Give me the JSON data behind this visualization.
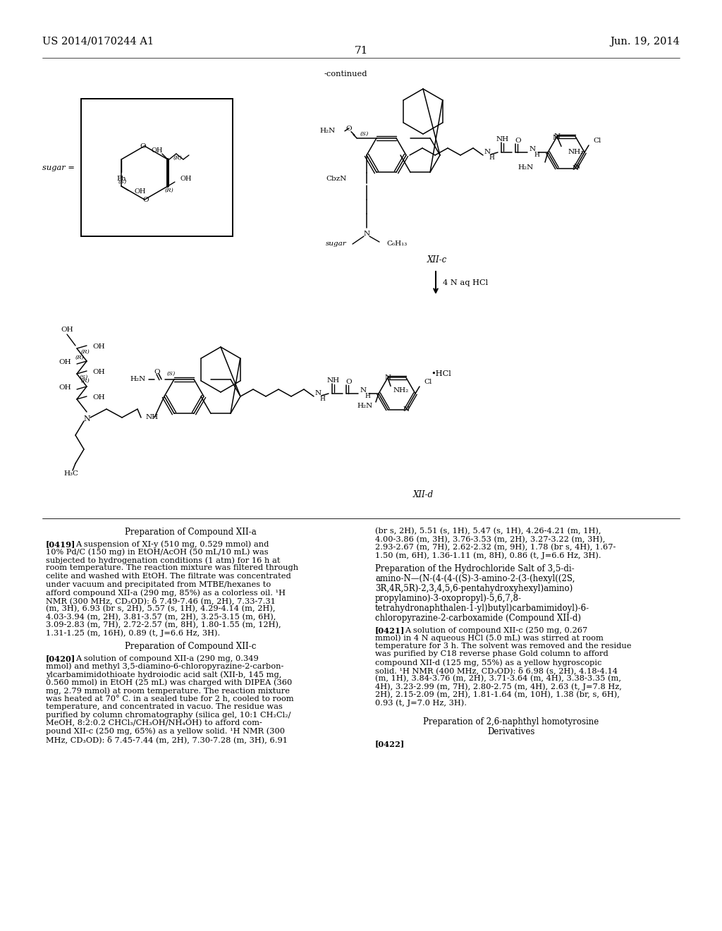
{
  "background_color": "#ffffff",
  "text_color": "#000000",
  "header_left": "US 2014/0170244 A1",
  "header_right": "Jun. 19, 2014",
  "page_number": "71",
  "continued_label": "-continued",
  "compound_top": "XII-c",
  "compound_bottom": "XII-d",
  "reaction_reagent": "4 N aq HCl",
  "sugar_eq": "sugar =",
  "hcl_label": "•HCl",
  "c6h13": "C₆H₁₃",
  "h3c": "H₃C",
  "header_fs": 10.5,
  "page_num_fs": 11,
  "body_fs": 8.2,
  "label_fs": 8.5,
  "struct_fs": 7.5,
  "small_fs": 6.0,
  "title_fs": 8.5,
  "prep_title_1": "Preparation of Compound XII-a",
  "prep_title_2": "Preparation of Compound XII-c",
  "prep_title_3a": "Preparation of the Hydrochloride Salt of 3,5-di-",
  "prep_title_3b": "amino-N—(N-(4-(4-((S)-3-amino-2-(3-(hexyl((2S,",
  "prep_title_3c": "3R,4R,5R)-2,3,4,5,6-pentahydroxyhexyl)amino)",
  "prep_title_3d": "propylamino)-3-oxopropyl)-5,6,7,8-",
  "prep_title_3e": "tetrahydronaphthalen-1-yl)butyl)carbamimidoyl)-6-",
  "prep_title_3f": "chloropyrazine-2-carboxamide (Compound XII-d)",
  "prep_title_4a": "Preparation of 2,6-naphthyl homotyrosine",
  "prep_title_4b": "Derivatives",
  "p419_label": "[0419]",
  "p419_lines": [
    "A suspension of XI-y (510 mg, 0.529 mmol) and",
    "10% Pd/C (150 mg) in EtOH/AcOH (50 mL/10 mL) was",
    "subjected to hydrogenation conditions (1 atm) for 16 h at",
    "room temperature. The reaction mixture was filtered through",
    "celite and washed with EtOH. The filtrate was concentrated",
    "under vacuum and precipitated from MTBE/hexanes to",
    "afford compound XII-a (290 mg, 85%) as a colorless oil. ¹H",
    "NMR (300 MHz, CD₃OD): δ 7.49-7.46 (m, 2H), 7.33-7.31",
    "(m, 3H), 6.93 (br s, 2H), 5.57 (s, 1H), 4.29-4.14 (m, 2H),",
    "4.03-3.94 (m, 2H), 3.81-3.57 (m, 2H), 3.25-3.15 (m, 6H),",
    "3.09-2.83 (m, 7H), 2.72-2.57 (m, 8H), 1.80-1.55 (m, 12H),",
    "1.31-1.25 (m, 16H), 0.89 (t, J=6.6 Hz, 3H)."
  ],
  "p420_label": "[0420]",
  "p420_lines": [
    "A solution of compound XII-a (290 mg, 0.349",
    "mmol) and methyl 3,5-diamino-6-chloropyrazine-2-carbon-",
    "ylcarbamimidothioate hydroiodic acid salt (XII-b, 145 mg,",
    "0.560 mmol) in EtOH (25 mL) was charged with DIPEA (360",
    "mg, 2.79 mmol) at room temperature. The reaction mixture",
    "was heated at 70° C. in a sealed tube for 2 h, cooled to room",
    "temperature, and concentrated in vacuo. The residue was",
    "purified by column chromatography (silica gel, 10:1 CH₂Cl₂/",
    "MeOH, 8:2:0.2 CHCl₃/CH₃OH/NH₄OH) to afford com-",
    "pound XII-c (250 mg, 65%) as a yellow solid. ¹H NMR (300",
    "MHz, CD₃OD): δ 7.45-7.44 (m, 2H), 7.30-7.28 (m, 3H), 6.91"
  ],
  "p_right_cont_lines": [
    "(br s, 2H), 5.51 (s, 1H), 5.47 (s, 1H), 4.26-4.21 (m, 1H),",
    "4.00-3.86 (m, 3H), 3.76-3.53 (m, 2H), 3.27-3.22 (m, 3H),",
    "2.93-2.67 (m, 7H), 2.62-2.32 (m, 9H), 1.78 (br s, 4H), 1.67-",
    "1.50 (m, 6H), 1.36-1.11 (m, 8H), 0.86 (t, J=6.6 Hz, 3H)."
  ],
  "p421_label": "[0421]",
  "p421_lines": [
    "A solution of compound XII-c (250 mg, 0.267",
    "mmol) in 4 N aqueous HCl (5.0 mL) was stirred at room",
    "temperature for 3 h. The solvent was removed and the residue",
    "was purified by C18 reverse phase Gold column to afford",
    "compound XII-d (125 mg, 55%) as a yellow hygroscopic",
    "solid. ¹H NMR (400 MHz, CD₃OD): δ 6.98 (s, 2H), 4.18-4.14",
    "(m, 1H), 3.84-3.76 (m, 2H), 3.71-3.64 (m, 4H), 3.38-3.35 (m,",
    "4H), 3.23-2.99 (m, 7H), 2.80-2.75 (m, 4H), 2.63 (t, J=7.8 Hz,",
    "2H), 2.15-2.09 (m, 2H), 1.81-1.64 (m, 10H), 1.38 (br, s, 6H),",
    "0.93 (t, J=7.0 Hz, 3H)."
  ],
  "p422_label": "[0422]"
}
